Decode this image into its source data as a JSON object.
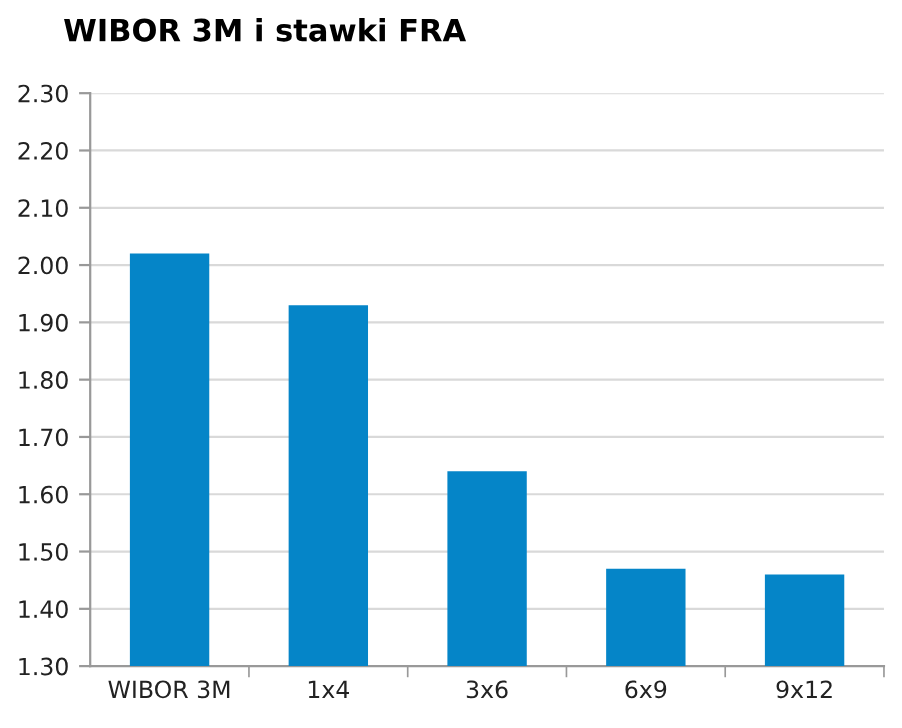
{
  "chart_data": {
    "type": "bar",
    "title": "WIBOR 3M i stawki FRA",
    "categories": [
      "WIBOR 3M",
      "1x4",
      "3x6",
      "6x9",
      "9x12"
    ],
    "values": [
      2.02,
      1.93,
      1.64,
      1.47,
      1.46
    ],
    "color": "#0585c8",
    "ylim": [
      1.3,
      2.3
    ],
    "yticks": [
      {
        "value": 1.3,
        "label": "1.30"
      },
      {
        "value": 1.4,
        "label": "1.40"
      },
      {
        "value": 1.5,
        "label": "1.50"
      },
      {
        "value": 1.6,
        "label": "1.60"
      },
      {
        "value": 1.7,
        "label": "1.70"
      },
      {
        "value": 1.8,
        "label": "1.80"
      },
      {
        "value": 1.9,
        "label": "1.90"
      },
      {
        "value": 2.0,
        "label": "2.00"
      },
      {
        "value": 2.1,
        "label": "2.10"
      },
      {
        "value": 2.2,
        "label": "2.20"
      },
      {
        "value": 2.3,
        "label": "2.30"
      }
    ],
    "grid": "y"
  }
}
